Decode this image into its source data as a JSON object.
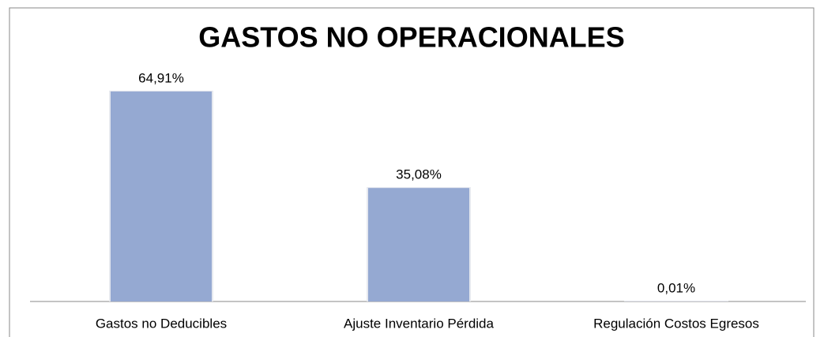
{
  "chart_data": {
    "type": "bar",
    "title": "GASTOS NO OPERACIONALES",
    "categories": [
      "Gastos no Deducibles",
      "Ajuste Inventario Pérdida",
      "Regulación Costos Egresos"
    ],
    "values": [
      64.91,
      35.08,
      0.01
    ],
    "value_labels": [
      "64,91%",
      "35,08%",
      "0,01%"
    ],
    "color": "#95a9d2"
  }
}
